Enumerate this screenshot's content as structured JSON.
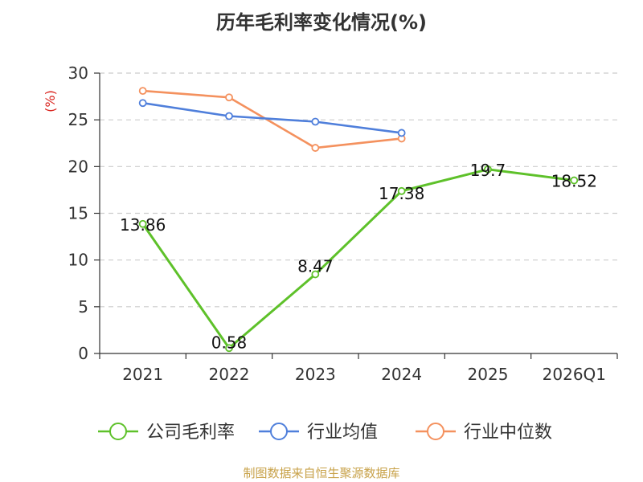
{
  "chart_data": {
    "type": "line",
    "title": "历年毛利率变化情况(%)",
    "unit": "(%)",
    "categories": [
      "2021",
      "2022",
      "2023",
      "2024",
      "2025",
      "2026Q1"
    ],
    "series": [
      {
        "name": "公司毛利率",
        "color": "#5ec12a",
        "values": [
          13.86,
          0.58,
          8.47,
          17.38,
          19.7,
          18.52
        ],
        "labels": [
          "13.86",
          "0.58",
          "8.47",
          "17.38",
          "19.7",
          "18.52"
        ]
      },
      {
        "name": "行业均值",
        "color": "#4f7fdb",
        "values": [
          26.8,
          25.4,
          24.8,
          23.6,
          null,
          null
        ]
      },
      {
        "name": "行业中位数",
        "color": "#f4915e",
        "values": [
          28.1,
          27.4,
          22.0,
          23.0,
          null,
          null
        ]
      }
    ],
    "y_ticks": [
      "0",
      "5",
      "10",
      "15",
      "20",
      "25",
      "30"
    ],
    "ylim": [
      0,
      30
    ],
    "grid": true,
    "legend_position": "bottom"
  },
  "unit_color": "#d9231d",
  "source": {
    "text": "制图数据来自恒生聚源数据库",
    "color": "#c8a24a"
  }
}
